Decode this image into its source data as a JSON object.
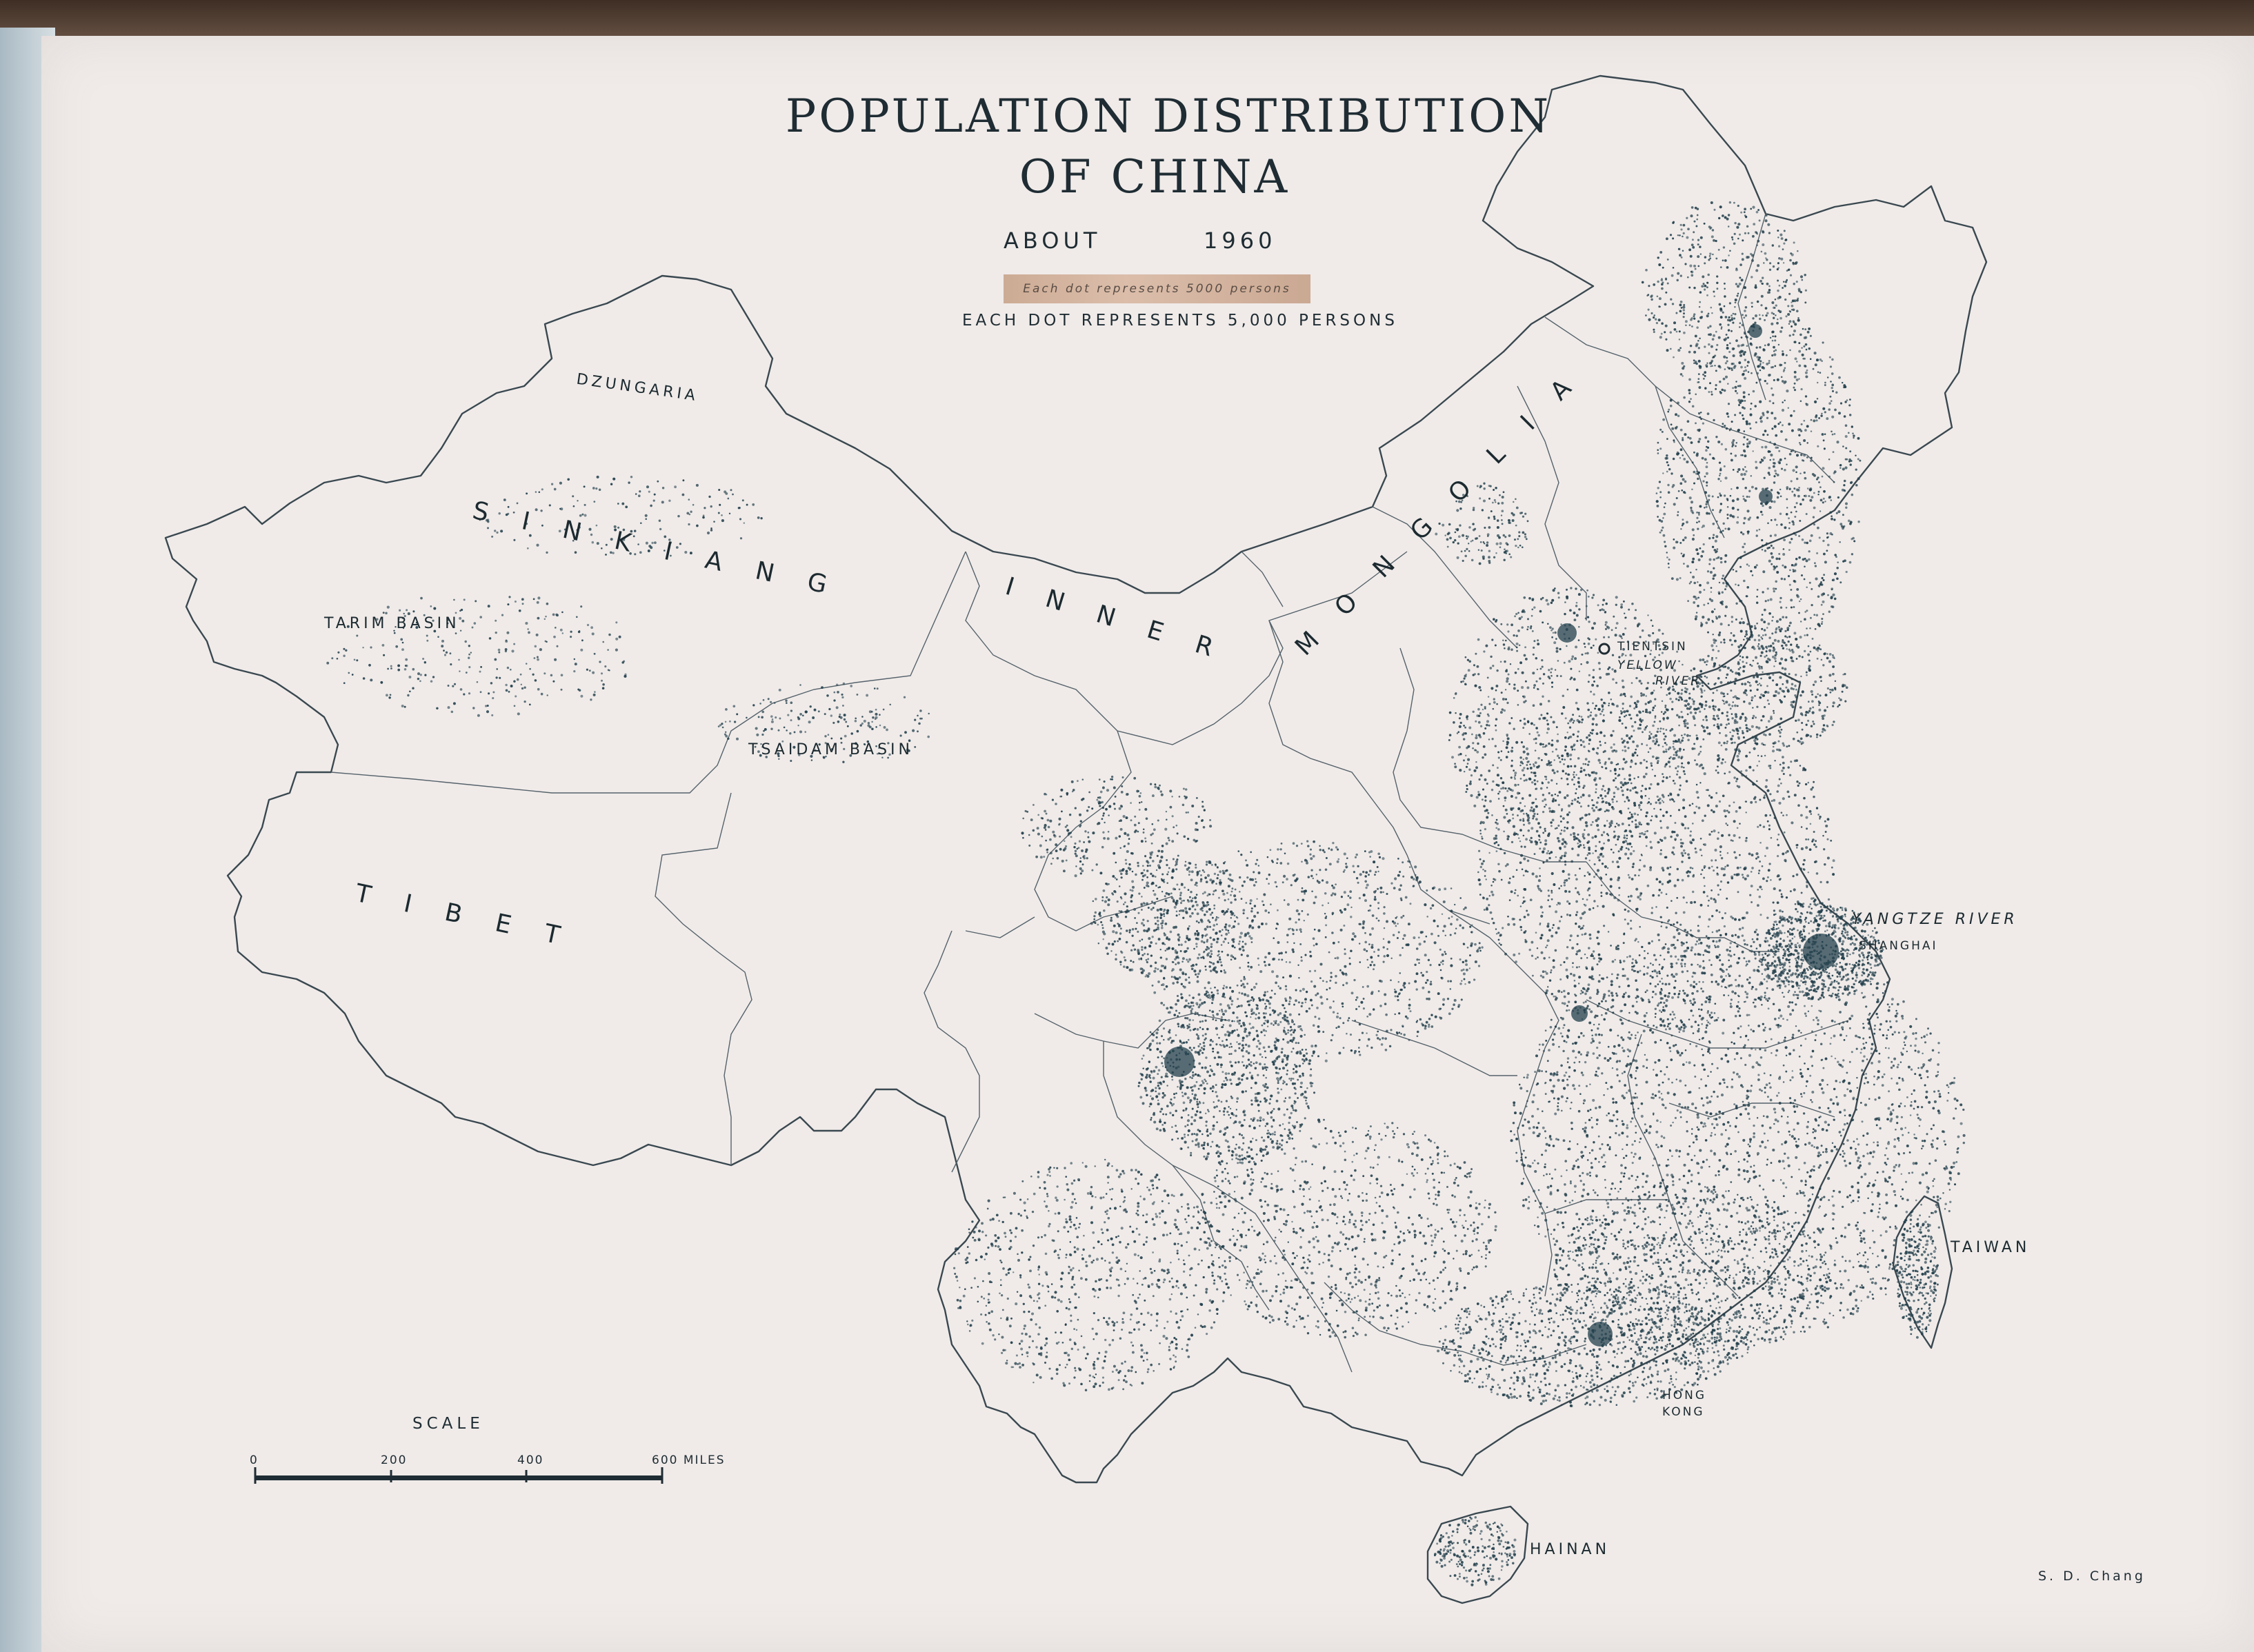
{
  "title_line1": "POPULATION  DISTRIBUTION",
  "title_line2": "OF   CHINA",
  "about": "ABOUT",
  "year": "1960",
  "taped_note": "Each dot represents 5000 persons",
  "legend": "EACH DOT REPRESENTS 5,000 PERSONS",
  "regions": {
    "dzungaria": "DZUNGARIA",
    "sinkiang": "SINKIANG",
    "tarim_basin": "TARIM  BASIN",
    "inner_mongolia_1": "INNER",
    "inner_mongolia_2": "MONGOLIA",
    "tsaidam_basin": "TSAIDAM BASIN",
    "tibet": "TIBET",
    "taiwan": "TAIWAN",
    "hainan": "HAINAN"
  },
  "places": {
    "tientsin": "TIENTSIN",
    "yellow_river_1": "YELLOW",
    "yellow_river_2": "RIVER",
    "yangtze_river": "YANGTZE RIVER",
    "shanghai": "SHANGHAI",
    "hong_kong_1": "HONG",
    "hong_kong_2": "KONG"
  },
  "scale": {
    "title": "SCALE",
    "ticks": [
      "0",
      "200",
      "400",
      "600 MILES"
    ]
  },
  "credit": "S. D. Chang",
  "colors": {
    "paper": "#f0ebe9",
    "ink": "#1f2c33",
    "dots": "#23404c"
  }
}
